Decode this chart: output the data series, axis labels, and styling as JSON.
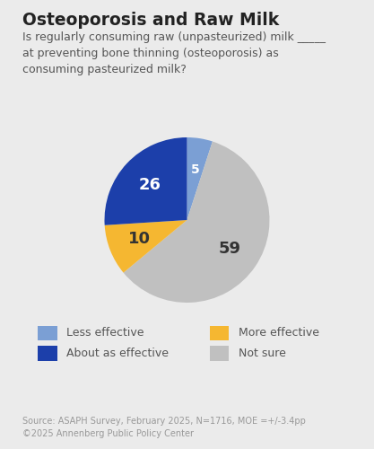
{
  "title": "Osteoporosis and Raw Milk",
  "subtitle": "Is regularly consuming raw (unpasteurized) milk _____\nat preventing bone thinning (osteoporosis) as\nconsuming pasteurized milk?",
  "slices_ordered": [
    5,
    59,
    10,
    26
  ],
  "values_ordered": [
    5,
    59,
    10,
    26
  ],
  "colors_ordered": [
    "#7B9FD4",
    "#C0C0C0",
    "#F5B731",
    "#1C3FAA"
  ],
  "text_colors_ordered": [
    "white",
    "#333333",
    "#333333",
    "white"
  ],
  "legend_items": [
    [
      "Less effective",
      "#7B9FD4"
    ],
    [
      "More effective",
      "#F5B731"
    ],
    [
      "About as effective",
      "#1C3FAA"
    ],
    [
      "Not sure",
      "#C0C0C0"
    ]
  ],
  "source": "Source: ASAPH Survey, February 2025, N=1716, MOE =+/-3.4pp\n©2025 Annenberg Public Policy Center",
  "background_color": "#EBEBEB",
  "title_fontsize": 13.5,
  "subtitle_fontsize": 9,
  "legend_fontsize": 9,
  "source_fontsize": 7,
  "label_fontsize_large": 13,
  "label_fontsize_small": 10
}
